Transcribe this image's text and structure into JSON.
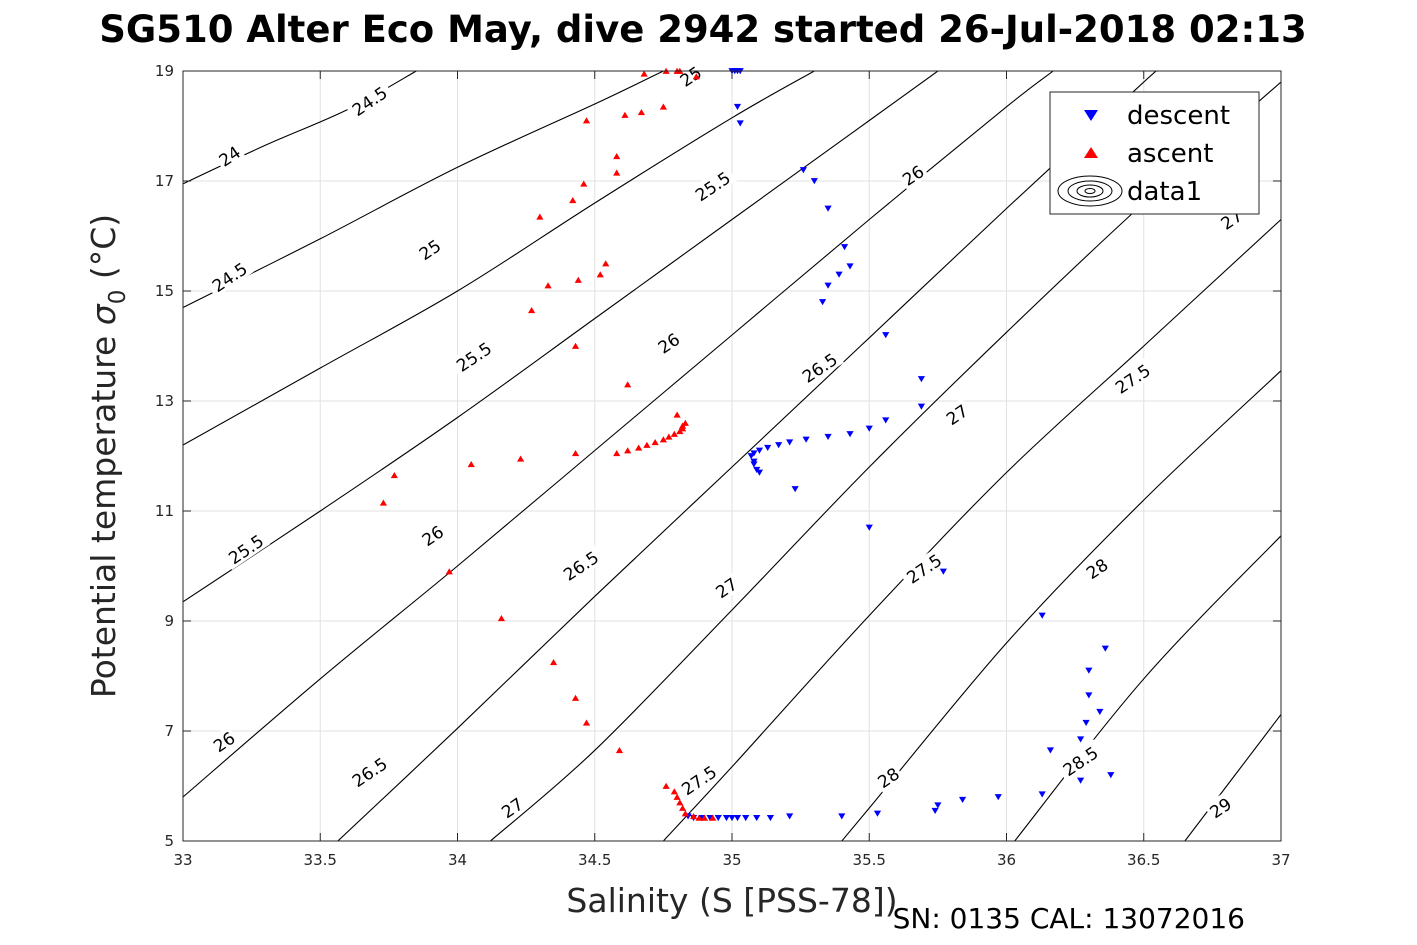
{
  "chart_data": {
    "type": "scatter",
    "title": "SG510 Alter Eco May, dive 2942 started 26-Jul-2018 02:13",
    "xlabel": "Salinity (S [PSS-78])",
    "ylabel": "Potential temperature σ₀ (°C)",
    "ylabel_parts": {
      "main": "Potential temperature ",
      "symbol": "σ",
      "sub": "0",
      "unit": " (°C)"
    },
    "footnote": "SN: 0135  CAL: 13072016",
    "xlim": [
      33,
      37
    ],
    "ylim": [
      5,
      19
    ],
    "x_ticks": [
      33,
      33.5,
      34,
      34.5,
      35,
      35.5,
      36,
      36.5,
      37
    ],
    "y_ticks": [
      5,
      7,
      9,
      11,
      13,
      15,
      17,
      19
    ],
    "grid": true,
    "legend_position": "top-right",
    "legend": [
      {
        "label": "descent",
        "marker": "triangle-down",
        "color": "#0000ff"
      },
      {
        "label": "ascent",
        "marker": "triangle-up",
        "color": "#ff0000"
      },
      {
        "label": "data1",
        "marker": "contour",
        "color": "#000000"
      }
    ],
    "contour_labels": [
      {
        "value": "24",
        "at": [
          33.17,
          17.45
        ]
      },
      {
        "value": "24.5",
        "at": [
          33.68,
          18.45
        ]
      },
      {
        "value": "24.5",
        "at": [
          33.17,
          15.25
        ]
      },
      {
        "value": "25",
        "at": [
          34.85,
          18.9
        ]
      },
      {
        "value": "25",
        "at": [
          33.9,
          15.75
        ]
      },
      {
        "value": "25.5",
        "at": [
          34.93,
          16.9
        ]
      },
      {
        "value": "25.5",
        "at": [
          34.06,
          13.8
        ]
      },
      {
        "value": "25.5",
        "at": [
          33.23,
          10.3
        ]
      },
      {
        "value": "26",
        "at": [
          35.66,
          17.1
        ]
      },
      {
        "value": "26",
        "at": [
          34.77,
          14.05
        ]
      },
      {
        "value": "26",
        "at": [
          33.91,
          10.55
        ]
      },
      {
        "value": "26",
        "at": [
          33.15,
          6.8
        ]
      },
      {
        "value": "26.5",
        "at": [
          35.32,
          13.6
        ]
      },
      {
        "value": "26.5",
        "at": [
          34.45,
          10.0
        ]
      },
      {
        "value": "26.5",
        "at": [
          33.68,
          6.25
        ]
      },
      {
        "value": "27",
        "at": [
          36.82,
          16.3
        ]
      },
      {
        "value": "27",
        "at": [
          35.82,
          12.75
        ]
      },
      {
        "value": "27",
        "at": [
          34.98,
          9.6
        ]
      },
      {
        "value": "27",
        "at": [
          34.2,
          5.6
        ]
      },
      {
        "value": "27.5",
        "at": [
          36.46,
          13.4
        ]
      },
      {
        "value": "27.5",
        "at": [
          35.7,
          9.95
        ]
      },
      {
        "value": "27.5",
        "at": [
          34.88,
          6.1
        ]
      },
      {
        "value": "28",
        "at": [
          36.33,
          9.95
        ]
      },
      {
        "value": "28",
        "at": [
          35.57,
          6.15
        ]
      },
      {
        "value": "28.5",
        "at": [
          36.27,
          6.45
        ]
      },
      {
        "value": "29",
        "at": [
          36.78,
          5.6
        ]
      }
    ],
    "contour_lines": [
      {
        "value": "24",
        "points": [
          [
            33.0,
            16.95
          ],
          [
            33.3,
            17.65
          ],
          [
            33.6,
            18.3
          ],
          [
            33.85,
            19.0
          ]
        ]
      },
      {
        "value": "24.5",
        "points": [
          [
            33.0,
            14.7
          ],
          [
            33.5,
            15.95
          ],
          [
            34.0,
            17.25
          ],
          [
            34.5,
            18.4
          ],
          [
            34.75,
            19.0
          ]
        ]
      },
      {
        "value": "25",
        "points": [
          [
            33.0,
            12.2
          ],
          [
            33.5,
            13.6
          ],
          [
            34.0,
            15.0
          ],
          [
            34.5,
            16.6
          ],
          [
            35.0,
            18.15
          ],
          [
            35.3,
            19.0
          ]
        ]
      },
      {
        "value": "25.5",
        "points": [
          [
            33.0,
            9.35
          ],
          [
            33.5,
            11.0
          ],
          [
            34.0,
            12.7
          ],
          [
            34.5,
            14.5
          ],
          [
            35.0,
            16.3
          ],
          [
            35.5,
            18.1
          ],
          [
            35.75,
            19.0
          ]
        ]
      },
      {
        "value": "26",
        "points": [
          [
            33.0,
            5.8
          ],
          [
            33.5,
            7.95
          ],
          [
            34.0,
            10.0
          ],
          [
            34.5,
            12.1
          ],
          [
            35.0,
            14.2
          ],
          [
            35.5,
            16.3
          ],
          [
            36.0,
            18.35
          ],
          [
            36.17,
            19.0
          ]
        ]
      },
      {
        "value": "26.5",
        "points": [
          [
            33.5,
            4.7
          ],
          [
            34.0,
            7.05
          ],
          [
            34.5,
            9.45
          ],
          [
            35.0,
            11.8
          ],
          [
            35.5,
            14.15
          ],
          [
            36.0,
            16.5
          ],
          [
            36.5,
            18.8
          ],
          [
            36.55,
            19.0
          ]
        ]
      },
      {
        "value": "27",
        "points": [
          [
            34.12,
            5.0
          ],
          [
            34.5,
            6.65
          ],
          [
            35.0,
            9.2
          ],
          [
            35.5,
            11.8
          ],
          [
            36.0,
            14.25
          ],
          [
            36.5,
            16.6
          ],
          [
            37.0,
            18.8
          ]
        ]
      },
      {
        "value": "27.5",
        "points": [
          [
            34.75,
            5.0
          ],
          [
            35.0,
            6.35
          ],
          [
            35.5,
            9.1
          ],
          [
            36.0,
            11.7
          ],
          [
            36.5,
            14.0
          ],
          [
            37.0,
            16.3
          ]
        ]
      },
      {
        "value": "28",
        "points": [
          [
            35.4,
            5.0
          ],
          [
            35.5,
            5.6
          ],
          [
            36.0,
            8.6
          ],
          [
            36.5,
            11.2
          ],
          [
            37.0,
            13.55
          ]
        ]
      },
      {
        "value": "28.5",
        "points": [
          [
            36.03,
            5.0
          ],
          [
            36.5,
            7.95
          ],
          [
            37.0,
            10.55
          ]
        ]
      },
      {
        "value": "29",
        "points": [
          [
            36.65,
            5.0
          ],
          [
            37.0,
            7.3
          ]
        ]
      }
    ],
    "series": [
      {
        "name": "descent",
        "marker": "triangle-down",
        "color": "#0000ff",
        "points": [
          [
            35.0,
            19.0
          ],
          [
            35.01,
            19.0
          ],
          [
            35.02,
            19.0
          ],
          [
            35.03,
            19.0
          ],
          [
            35.02,
            18.35
          ],
          [
            35.03,
            18.05
          ],
          [
            35.26,
            17.2
          ],
          [
            35.3,
            17.0
          ],
          [
            35.35,
            16.5
          ],
          [
            35.41,
            15.8
          ],
          [
            35.35,
            15.1
          ],
          [
            35.39,
            15.3
          ],
          [
            35.43,
            15.45
          ],
          [
            35.33,
            14.8
          ],
          [
            35.56,
            14.2
          ],
          [
            35.69,
            13.4
          ],
          [
            35.69,
            12.9
          ],
          [
            35.56,
            12.65
          ],
          [
            35.5,
            12.5
          ],
          [
            35.43,
            12.4
          ],
          [
            35.35,
            12.35
          ],
          [
            35.27,
            12.3
          ],
          [
            35.21,
            12.25
          ],
          [
            35.17,
            12.2
          ],
          [
            35.13,
            12.15
          ],
          [
            35.1,
            12.1
          ],
          [
            35.08,
            12.05
          ],
          [
            35.07,
            12.0
          ],
          [
            35.08,
            11.9
          ],
          [
            35.08,
            11.85
          ],
          [
            35.09,
            11.75
          ],
          [
            35.1,
            11.7
          ],
          [
            35.23,
            11.4
          ],
          [
            35.5,
            10.7
          ],
          [
            35.77,
            9.9
          ],
          [
            36.13,
            9.1
          ],
          [
            36.36,
            8.5
          ],
          [
            36.3,
            8.1
          ],
          [
            36.3,
            7.65
          ],
          [
            36.34,
            7.35
          ],
          [
            36.29,
            7.15
          ],
          [
            36.27,
            6.85
          ],
          [
            36.16,
            6.65
          ],
          [
            36.38,
            6.2
          ],
          [
            36.27,
            6.1
          ],
          [
            36.13,
            5.85
          ],
          [
            35.97,
            5.8
          ],
          [
            35.84,
            5.75
          ],
          [
            35.75,
            5.65
          ],
          [
            35.74,
            5.55
          ],
          [
            35.53,
            5.5
          ],
          [
            35.4,
            5.45
          ],
          [
            35.21,
            5.45
          ],
          [
            35.14,
            5.42
          ],
          [
            35.09,
            5.42
          ],
          [
            35.05,
            5.42
          ],
          [
            35.02,
            5.42
          ],
          [
            35.0,
            5.42
          ],
          [
            34.98,
            5.42
          ],
          [
            34.95,
            5.42
          ],
          [
            34.92,
            5.42
          ],
          [
            34.89,
            5.42
          ],
          [
            34.86,
            5.42
          ],
          [
            34.84,
            5.45
          ]
        ]
      },
      {
        "name": "ascent",
        "marker": "triangle-up",
        "color": "#ff0000",
        "points": [
          [
            34.68,
            18.95
          ],
          [
            34.76,
            19.0
          ],
          [
            34.8,
            19.0
          ],
          [
            34.81,
            19.0
          ],
          [
            34.87,
            18.9
          ],
          [
            34.75,
            18.35
          ],
          [
            34.67,
            18.25
          ],
          [
            34.61,
            18.2
          ],
          [
            34.47,
            18.1
          ],
          [
            34.58,
            17.45
          ],
          [
            34.58,
            17.15
          ],
          [
            34.46,
            16.95
          ],
          [
            34.42,
            16.65
          ],
          [
            34.3,
            16.35
          ],
          [
            34.54,
            15.5
          ],
          [
            34.52,
            15.3
          ],
          [
            34.44,
            15.2
          ],
          [
            34.33,
            15.1
          ],
          [
            34.27,
            14.65
          ],
          [
            34.43,
            14.0
          ],
          [
            34.62,
            13.3
          ],
          [
            34.8,
            12.75
          ],
          [
            34.83,
            12.6
          ],
          [
            34.82,
            12.55
          ],
          [
            34.82,
            12.5
          ],
          [
            34.81,
            12.45
          ],
          [
            34.79,
            12.4
          ],
          [
            34.77,
            12.35
          ],
          [
            34.75,
            12.3
          ],
          [
            34.72,
            12.25
          ],
          [
            34.69,
            12.2
          ],
          [
            34.66,
            12.15
          ],
          [
            34.62,
            12.1
          ],
          [
            34.58,
            12.05
          ],
          [
            34.43,
            12.05
          ],
          [
            34.23,
            11.95
          ],
          [
            34.05,
            11.85
          ],
          [
            33.77,
            11.65
          ],
          [
            33.73,
            11.15
          ],
          [
            33.97,
            9.9
          ],
          [
            34.16,
            9.05
          ],
          [
            34.35,
            8.25
          ],
          [
            34.43,
            7.6
          ],
          [
            34.47,
            7.15
          ],
          [
            34.59,
            6.65
          ],
          [
            34.76,
            6.0
          ],
          [
            34.79,
            5.9
          ],
          [
            34.8,
            5.8
          ],
          [
            34.81,
            5.7
          ],
          [
            34.82,
            5.6
          ],
          [
            34.83,
            5.5
          ],
          [
            34.86,
            5.45
          ],
          [
            34.88,
            5.42
          ],
          [
            34.9,
            5.42
          ],
          [
            34.93,
            5.42
          ]
        ]
      }
    ]
  }
}
